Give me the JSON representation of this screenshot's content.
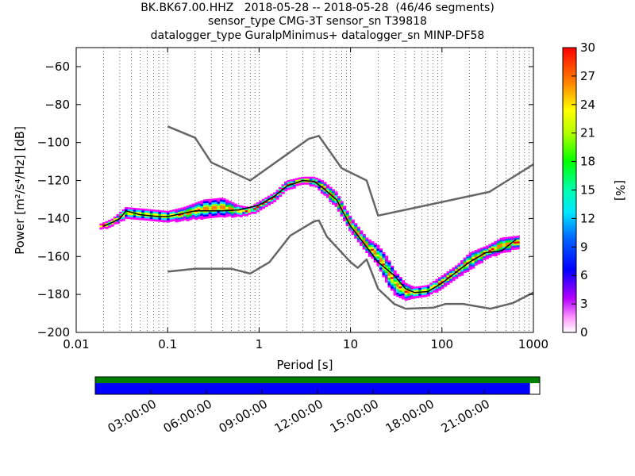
{
  "header": {
    "title_line1": "BK.BK67.00.HHZ   2018-05-28 -- 2018-05-28  (46/46 segments)",
    "title_line2": "sensor_type CMG-3T sensor_sn T39818",
    "title_line3": "datalogger_type GuralpMinimus+ datalogger_sn MINP-DF58"
  },
  "chart_data": {
    "type": "heatmap",
    "title": "BK.BK67.00.HHZ   2018-05-28 -- 2018-05-28  (46/46 segments)",
    "xlabel": "Period [s]",
    "ylabel": "Power [m²/s⁴/Hz] [dB]",
    "xscale": "log",
    "xlim": [
      0.01,
      1000
    ],
    "ylim": [
      -200,
      -50
    ],
    "x_ticks": [
      "0.01",
      "0.1",
      "1",
      "10",
      "100",
      "1000"
    ],
    "y_ticks": [
      "−60",
      "−80",
      "−100",
      "−120",
      "−140",
      "−160",
      "−180",
      "−200"
    ],
    "grid": "dotted vertical",
    "colorbar": {
      "label": "[%]",
      "range": [
        0,
        30
      ],
      "ticks": [
        "0",
        "3",
        "6",
        "9",
        "12",
        "15",
        "18",
        "21",
        "24",
        "27",
        "30"
      ]
    },
    "series": [
      {
        "name": "",
        "color": "#666666",
        "x": [
          0.1,
          0.2,
          0.3,
          0.8,
          3.5,
          4.5,
          8.0,
          15.0,
          20.0,
          330.0,
          1000.0
        ],
        "y": [
          -91.5,
          -97.5,
          -110.5,
          -120.0,
          -98.0,
          -96.5,
          -113.5,
          -120.0,
          -138.5,
          -126.0,
          -111.5
        ]
      },
      {
        "name": "",
        "color": "#666666",
        "x": [
          0.1,
          0.2,
          0.5,
          0.8,
          1.3,
          2.2,
          4.0,
          4.5,
          5.5,
          10.0,
          12.0,
          15.0,
          20.0,
          30.0,
          40.0,
          80.0,
          110.0,
          170.0,
          340.0,
          600.0,
          1000.0
        ],
        "y": [
          -168.0,
          -166.5,
          -166.5,
          -169.0,
          -163.0,
          -149.0,
          -141.5,
          -141.0,
          -149.5,
          -163.0,
          -166.0,
          -161.5,
          -177.0,
          -185.0,
          -187.5,
          -187.0,
          -185.0,
          -185.0,
          -187.5,
          -184.5,
          -179.0
        ]
      },
      {
        "name": "",
        "color": "#000000",
        "x": [
          0.02,
          0.025,
          0.03,
          0.035,
          0.05,
          0.08,
          0.1,
          0.2,
          0.4,
          0.6,
          1.0,
          1.5,
          2.0,
          3.0,
          4.0,
          5.0,
          7.0,
          10.0,
          15.0,
          20.0,
          30.0,
          40.0,
          50.0,
          70.0,
          100.0,
          150.0,
          200.0,
          300.0,
          450.0,
          650.0
        ],
        "y": [
          -144.0,
          -142.0,
          -140.0,
          -136.0,
          -138.0,
          -139.0,
          -139.0,
          -136.0,
          -136.0,
          -135.5,
          -133.0,
          -128.0,
          -123.0,
          -120.0,
          -120.5,
          -124.0,
          -130.0,
          -144.0,
          -155.0,
          -163.0,
          -170.0,
          -177.0,
          -179.0,
          -178.5,
          -174.0,
          -167.5,
          -163.0,
          -158.0,
          -157.0,
          -151.0
        ]
      }
    ],
    "heatmap_band": {
      "x": [
        0.018,
        0.025,
        0.035,
        0.06,
        0.1,
        0.15,
        0.25,
        0.4,
        0.6,
        0.8,
        1.0,
        1.5,
        2.0,
        3.0,
        4.0,
        5.0,
        7.0,
        10.0,
        15.0,
        20.0,
        25.0,
        30.0,
        40.0,
        50.0,
        70.0,
        100.0,
        150.0,
        200.0,
        250.0,
        320.0,
        450.0,
        700.0
      ],
      "lower": [
        -146.0,
        -144.0,
        -140.0,
        -141.0,
        -142.0,
        -141.0,
        -140.0,
        -139.0,
        -139.0,
        -138.0,
        -136.0,
        -131.0,
        -125.0,
        -122.0,
        -123.0,
        -127.0,
        -134.0,
        -147.0,
        -158.0,
        -165.0,
        -174.0,
        -180.0,
        -183.0,
        -182.0,
        -181.0,
        -177.0,
        -171.0,
        -167.0,
        -164.0,
        -161.0,
        -158.0,
        -156.0
      ],
      "upper": [
        -143.0,
        -140.0,
        -134.0,
        -135.0,
        -136.0,
        -134.0,
        -130.0,
        -129.0,
        -133.0,
        -134.0,
        -131.0,
        -126.0,
        -120.0,
        -118.0,
        -118.0,
        -120.0,
        -126.0,
        -139.0,
        -150.0,
        -154.0,
        -160.0,
        -167.0,
        -174.0,
        -176.0,
        -175.0,
        -170.0,
        -164.0,
        -158.0,
        -156.0,
        -154.0,
        -150.0,
        -149.0
      ]
    },
    "timeline": {
      "ticks": [
        "03:00:00",
        "06:00:00",
        "09:00:00",
        "12:00:00",
        "15:00:00",
        "18:00:00",
        "21:00:00"
      ],
      "coverage_fraction": 0.978,
      "coverage_color": "#0000ff",
      "available_color": "#008000"
    }
  }
}
